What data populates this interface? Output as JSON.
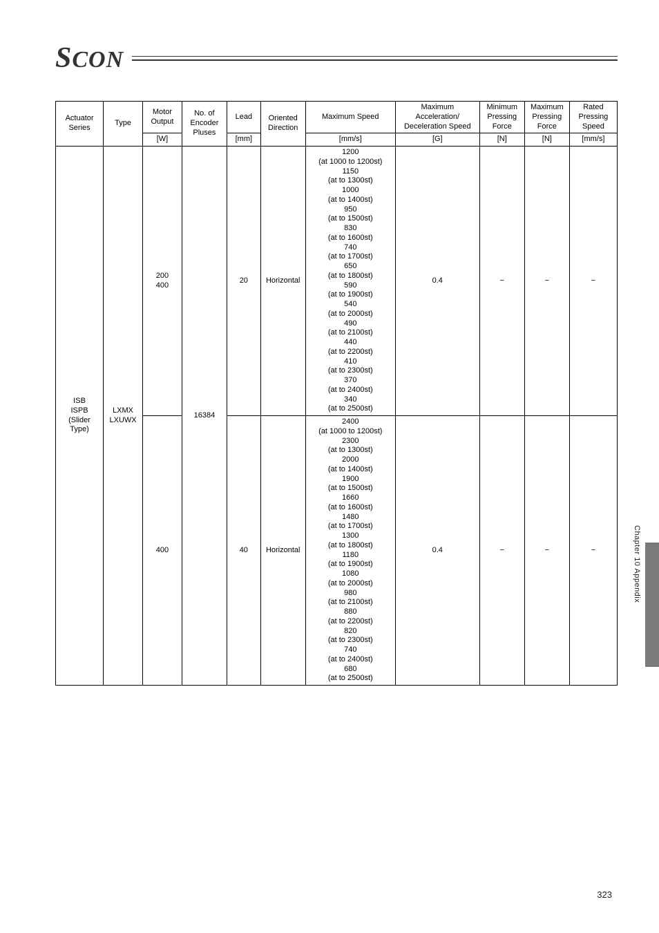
{
  "logo": {
    "prefix": "S",
    "rest": "CON"
  },
  "side_text": "Chapter 10 Appendix",
  "page_number": "323",
  "table": {
    "columns": [
      {
        "label_top": "Actuator Series",
        "unit": ""
      },
      {
        "label_top": "Type",
        "unit": ""
      },
      {
        "label_top": "Motor Output",
        "unit": "[W]"
      },
      {
        "label_top": "No. of Encoder Pluses",
        "unit": ""
      },
      {
        "label_top": "Lead",
        "unit": "[mm]"
      },
      {
        "label_top": "Oriented Direction",
        "unit": ""
      },
      {
        "label_top": "Maximum Speed",
        "unit": "[mm/s]"
      },
      {
        "label_top": "Maximum Acceleration/ Deceleration Speed",
        "unit": "[G]"
      },
      {
        "label_top": "Minimum Pressing Force",
        "unit": "[N]"
      },
      {
        "label_top": "Maximum Pressing Force",
        "unit": "[N]"
      },
      {
        "label_top": "Rated Pressing Speed",
        "unit": "[mm/s]"
      }
    ],
    "shared": {
      "actuator_series": "ISB\nISPB\n(Slider Type)",
      "type": "LXMX\nLXUWX",
      "encoder_pluses": "16384"
    },
    "rows": [
      {
        "motor_output": "200\n400",
        "lead": "20",
        "direction": "Horizontal",
        "accel": "0.4",
        "min_force": "−",
        "max_force": "−",
        "rated_speed": "−",
        "speed_lines": [
          "1200",
          "(at 1000 to 1200st)",
          "1150",
          "(at to 1300st)",
          "1000",
          "(at to 1400st)",
          "950",
          "(at to 1500st)",
          "830",
          "(at to 1600st)",
          "740",
          "(at to 1700st)",
          "650",
          "(at to 1800st)",
          "590",
          "(at to 1900st)",
          "540",
          "(at to 2000st)",
          "490",
          "(at to 2100st)",
          "440",
          "(at to 2200st)",
          "410",
          "(at to 2300st)",
          "370",
          "(at to 2400st)",
          "340",
          "(at to 2500st)"
        ]
      },
      {
        "motor_output": "400",
        "lead": "40",
        "direction": "Horizontal",
        "accel": "0.4",
        "min_force": "−",
        "max_force": "−",
        "rated_speed": "−",
        "speed_lines": [
          "2400",
          "(at 1000 to 1200st)",
          "2300",
          "(at to 1300st)",
          "2000",
          "(at to 1400st)",
          "1900",
          "(at to 1500st)",
          "1660",
          "(at to 1600st)",
          "1480",
          "(at to 1700st)",
          "1300",
          "(at to 1800st)",
          "1180",
          "(at to 1900st)",
          "1080",
          "(at to 2000st)",
          "980",
          "(at to 2100st)",
          "880",
          "(at to 2200st)",
          "820",
          "(at to 2300st)",
          "740",
          "(at to 2400st)",
          "680",
          "(at to 2500st)"
        ]
      }
    ]
  }
}
